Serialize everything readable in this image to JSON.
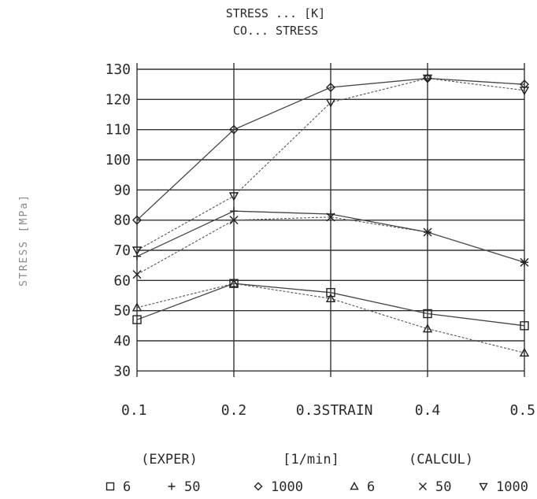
{
  "chart_data": {
    "type": "line",
    "title_line1": "STRESS ... [K]",
    "title_line2": "CO... STRESS",
    "ylabel": "STRESS [MPa]",
    "xlabel": "STRAIN",
    "x": [
      0.1,
      0.2,
      0.3,
      0.4,
      0.5
    ],
    "x_tick_labels": [
      "0.1",
      "0.2",
      "0.3",
      "0.4",
      "0.5"
    ],
    "y_ticks": [
      30,
      40,
      50,
      60,
      70,
      80,
      90,
      100,
      110,
      120,
      130
    ],
    "y_tick_labels": [
      "30",
      "40",
      "50",
      "60",
      "70",
      "80",
      "90",
      "100",
      "110",
      "120",
      "130"
    ],
    "ylim": [
      28,
      130
    ],
    "xlim": [
      0.1,
      0.5
    ],
    "grid": true,
    "legend": {
      "exper_label": "(EXPER)",
      "units_label": "[1/min]",
      "calcul_label": "(CALCUL)",
      "items": [
        {
          "symbol": "square",
          "text": "6"
        },
        {
          "symbol": "plus",
          "text": "50"
        },
        {
          "symbol": "diamond",
          "text": "1000"
        },
        {
          "symbol": "triangle",
          "text": "6"
        },
        {
          "symbol": "cross",
          "text": "50"
        },
        {
          "symbol": "triangle-down",
          "text": "1000"
        }
      ]
    },
    "series": [
      {
        "marker": "square",
        "kind": "exper",
        "values": [
          47,
          59,
          56,
          49,
          45
        ]
      },
      {
        "marker": "plus",
        "kind": "exper",
        "values": [
          68,
          83,
          82,
          76,
          66
        ]
      },
      {
        "marker": "diamond",
        "kind": "exper",
        "values": [
          80,
          110,
          124,
          127,
          125
        ]
      },
      {
        "marker": "triangle",
        "kind": "calcul",
        "values": [
          51,
          59,
          54,
          44,
          36
        ]
      },
      {
        "marker": "cross",
        "kind": "calcul",
        "values": [
          62,
          80,
          81,
          76,
          66
        ]
      },
      {
        "marker": "triangle-down",
        "kind": "calcul",
        "values": [
          70,
          88,
          119,
          127,
          123
        ]
      }
    ]
  }
}
